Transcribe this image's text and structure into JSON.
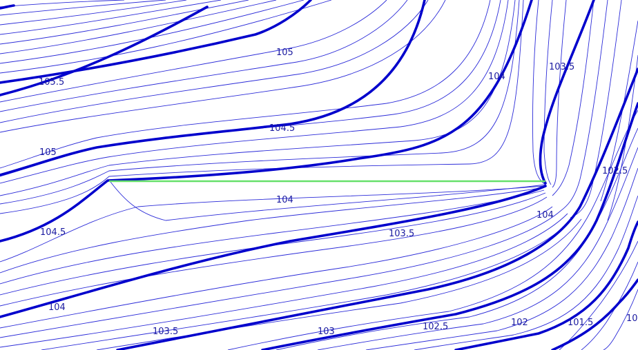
{
  "colors": {
    "background": "#ffffff",
    "minor_contour": "#2a2ad8",
    "major_contour": "#0000cc",
    "fault_line": "#66e06a",
    "label_text": "#1a1aa0"
  },
  "labels": {
    "l105_5": "105.5",
    "l105_top": "105",
    "l104_top_right": "104",
    "l103_5_top_right": "103.5",
    "l104_5_center": "104.5",
    "l105_left": "105",
    "l102_5_right": "102.5",
    "l104_center": "104",
    "l104_right": "104",
    "l104_5_left": "104.5",
    "l103_5_center": "103.5",
    "l104_bottom_left": "104",
    "l103_5_bottom": "103.5",
    "l103_bottom": "103",
    "l102_5_bottom": "102.5",
    "l102_bottom": "102",
    "l101_5_bottom": "101.5",
    "l101_cut": "10"
  }
}
